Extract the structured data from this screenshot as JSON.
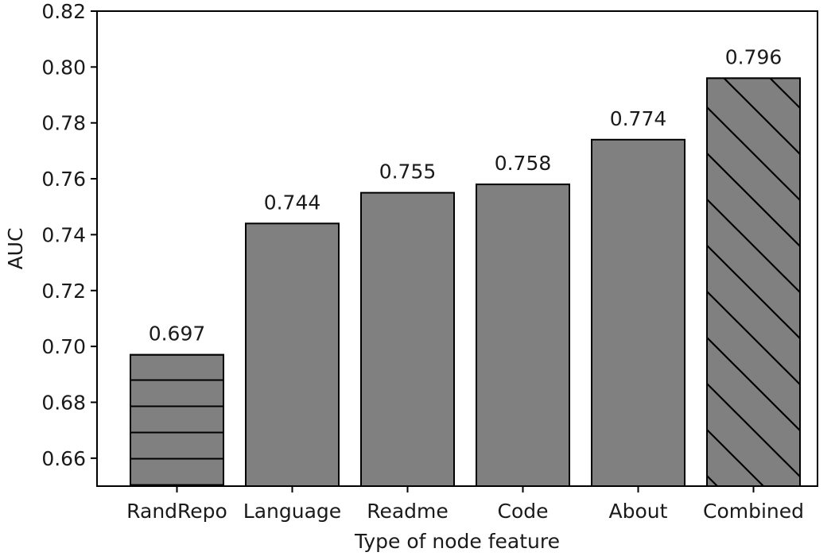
{
  "chart_data": {
    "type": "bar",
    "title": "",
    "xlabel": "Type of node feature",
    "ylabel": "AUC",
    "categories": [
      "RandRepo",
      "Language",
      "Readme",
      "Code",
      "About",
      "Combined"
    ],
    "values": [
      0.697,
      0.744,
      0.755,
      0.758,
      0.774,
      0.796
    ],
    "value_labels": [
      "0.697",
      "0.744",
      "0.755",
      "0.758",
      "0.774",
      "0.796"
    ],
    "hatches": [
      "horizontal",
      "none",
      "none",
      "none",
      "none",
      "diagonal"
    ],
    "bar_color": "#808080",
    "edge_color": "#000000",
    "ylim": [
      0.65,
      0.82
    ],
    "yticks": [
      0.66,
      0.68,
      0.7,
      0.72,
      0.74,
      0.76,
      0.78,
      0.8,
      0.82
    ],
    "ytick_labels": [
      "0.66",
      "0.68",
      "0.70",
      "0.72",
      "0.74",
      "0.76",
      "0.78",
      "0.80",
      "0.82"
    ],
    "grid": false,
    "legend": "none"
  }
}
